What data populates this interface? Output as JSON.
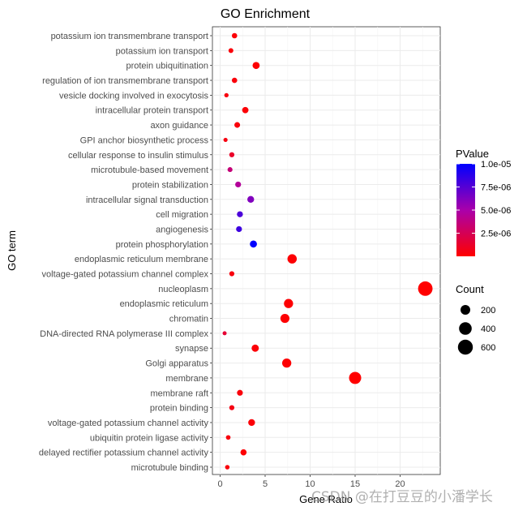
{
  "chart_data": {
    "type": "scatter",
    "title": "GO Enrichment",
    "xlabel": "Gene Ratio",
    "ylabel": "GO term",
    "xlim": [
      -0.6,
      23.8
    ],
    "xticks": [
      0,
      5,
      10,
      15,
      20
    ],
    "grid": true,
    "points": [
      {
        "term": "potassium ion transmembrane transport",
        "gene_ratio": 1.6,
        "count": 30,
        "pvalue": 2e-07
      },
      {
        "term": "potassium ion transport",
        "gene_ratio": 1.2,
        "count": 20,
        "pvalue": 3e-07
      },
      {
        "term": "protein ubiquitination",
        "gene_ratio": 4.0,
        "count": 80,
        "pvalue": 1e-07
      },
      {
        "term": "regulation of ion transmembrane transport",
        "gene_ratio": 1.6,
        "count": 30,
        "pvalue": 3e-07
      },
      {
        "term": "vesicle docking involved in exocytosis",
        "gene_ratio": 0.7,
        "count": 12,
        "pvalue": 4e-07
      },
      {
        "term": "intracellular protein transport",
        "gene_ratio": 2.8,
        "count": 55,
        "pvalue": 2e-07
      },
      {
        "term": "axon guidance",
        "gene_ratio": 1.9,
        "count": 38,
        "pvalue": 3e-07
      },
      {
        "term": "GPI anchor biosynthetic process",
        "gene_ratio": 0.6,
        "count": 10,
        "pvalue": 5e-07
      },
      {
        "term": "cellular response to insulin stimulus",
        "gene_ratio": 1.3,
        "count": 25,
        "pvalue": 1.2e-06
      },
      {
        "term": "microtubule-based movement",
        "gene_ratio": 1.1,
        "count": 22,
        "pvalue": 3.5e-06
      },
      {
        "term": "protein stabilization",
        "gene_ratio": 2.0,
        "count": 42,
        "pvalue": 4.5e-06
      },
      {
        "term": "intracellular signal transduction",
        "gene_ratio": 3.4,
        "count": 70,
        "pvalue": 6.2e-06
      },
      {
        "term": "cell migration",
        "gene_ratio": 2.2,
        "count": 45,
        "pvalue": 7.8e-06
      },
      {
        "term": "angiogenesis",
        "gene_ratio": 2.1,
        "count": 42,
        "pvalue": 8.2e-06
      },
      {
        "term": "protein phosphorylation",
        "gene_ratio": 3.7,
        "count": 80,
        "pvalue": 1e-05
      },
      {
        "term": "endoplasmic reticulum membrane",
        "gene_ratio": 8.0,
        "count": 180,
        "pvalue": 1e-07
      },
      {
        "term": "voltage-gated potassium channel complex",
        "gene_ratio": 1.3,
        "count": 24,
        "pvalue": 4e-07
      },
      {
        "term": "nucleoplasm",
        "gene_ratio": 22.8,
        "count": 560,
        "pvalue": 1e-08
      },
      {
        "term": "endoplasmic reticulum",
        "gene_ratio": 7.6,
        "count": 170,
        "pvalue": 1e-07
      },
      {
        "term": "chromatin",
        "gene_ratio": 7.2,
        "count": 165,
        "pvalue": 1e-07
      },
      {
        "term": "DNA-directed RNA polymerase III complex",
        "gene_ratio": 0.5,
        "count": 8,
        "pvalue": 1.5e-06
      },
      {
        "term": "synapse",
        "gene_ratio": 3.9,
        "count": 85,
        "pvalue": 2e-07
      },
      {
        "term": "Golgi apparatus",
        "gene_ratio": 7.4,
        "count": 170,
        "pvalue": 1e-07
      },
      {
        "term": "membrane",
        "gene_ratio": 15.0,
        "count": 360,
        "pvalue": 1e-08
      },
      {
        "term": "membrane raft",
        "gene_ratio": 2.2,
        "count": 42,
        "pvalue": 3e-07
      },
      {
        "term": "protein binding",
        "gene_ratio": 1.3,
        "count": 24,
        "pvalue": 6e-07
      },
      {
        "term": "voltage-gated potassium channel activity",
        "gene_ratio": 3.5,
        "count": 70,
        "pvalue": 2e-07
      },
      {
        "term": "ubiquitin protein ligase activity",
        "gene_ratio": 0.9,
        "count": 16,
        "pvalue": 4e-07
      },
      {
        "term": "delayed rectifier potassium channel activity",
        "gene_ratio": 2.6,
        "count": 50,
        "pvalue": 1e-07
      },
      {
        "term": "microtubule binding",
        "gene_ratio": 0.8,
        "count": 14,
        "pvalue": 3e-07
      }
    ],
    "color_legend": {
      "title": "PValue",
      "range": [
        0,
        1e-05
      ],
      "low_color": "#ff0000",
      "mid_color": "#aa00aa",
      "high_color": "#0000ff",
      "breaks": [
        {
          "value": 2.5e-06,
          "label": "2.5e-06"
        },
        {
          "value": 5e-06,
          "label": "5.0e-06"
        },
        {
          "value": 7.5e-06,
          "label": "7.5e-06"
        },
        {
          "value": 1e-05,
          "label": "1.0e-05"
        }
      ]
    },
    "size_legend": {
      "title": "Count",
      "range": [
        8,
        560
      ],
      "breaks": [
        {
          "value": 200,
          "label": "200"
        },
        {
          "value": 400,
          "label": "400"
        },
        {
          "value": 600,
          "label": "600"
        }
      ]
    },
    "watermark": "CSDN @在打豆豆的小潘学长"
  }
}
